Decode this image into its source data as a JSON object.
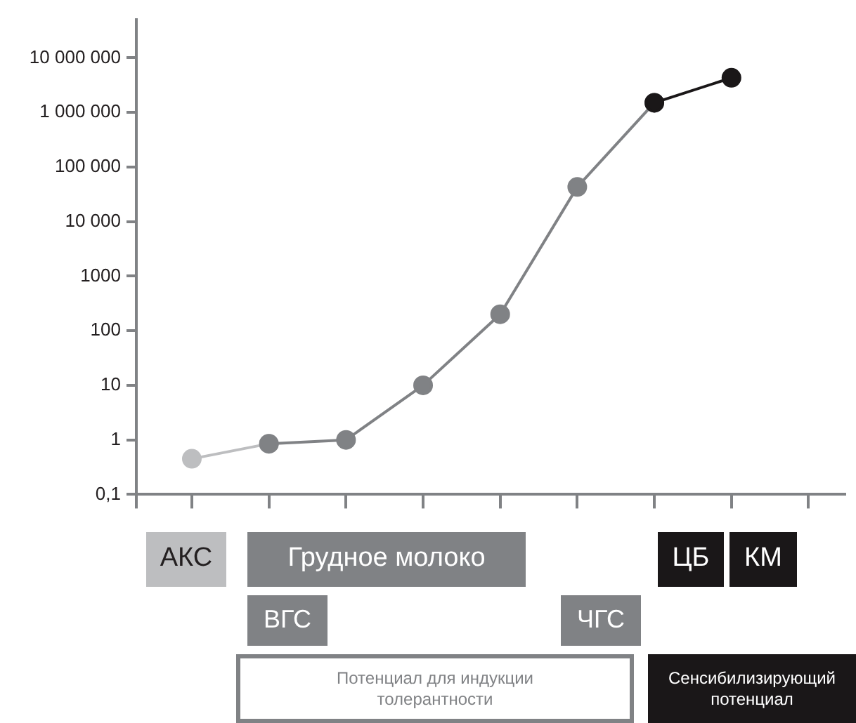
{
  "chart_data": {
    "type": "line",
    "log": "y",
    "categories": [
      null,
      null,
      null,
      null,
      null,
      null,
      null,
      null
    ],
    "series": [
      {
        "color": "#bdbec0",
        "values": [
          0.45,
          0.85,
          null,
          null,
          null,
          null,
          null,
          null
        ]
      },
      {
        "color": "#808285",
        "values": [
          null,
          0.85,
          1,
          10,
          200,
          43000,
          1500000,
          null
        ]
      },
      {
        "color": "#1a1718",
        "values": [
          null,
          null,
          null,
          null,
          null,
          null,
          1500000,
          4300000
        ]
      }
    ],
    "marker": "circle",
    "grid": false,
    "tick_labels": "y",
    "ylim": [
      0.1,
      50000000
    ],
    "yticks": [
      {
        "value": 0.1,
        "label": "0,1"
      },
      1,
      10,
      100,
      1000,
      {
        "value": 10000,
        "label": "10 000"
      },
      {
        "value": 100000,
        "label": "100 000"
      },
      {
        "value": 1000000,
        "label": "1 000 000"
      },
      {
        "value": 10000000,
        "label": "10 000 000"
      }
    ],
    "annotations": [
      "АКС",
      "Грудное молоко",
      "ВГС",
      "ЧГС",
      "ЦБ",
      "КМ",
      "Потенциал для индукции толерантности",
      "Сенсибилизирующий потенциал"
    ]
  }
}
